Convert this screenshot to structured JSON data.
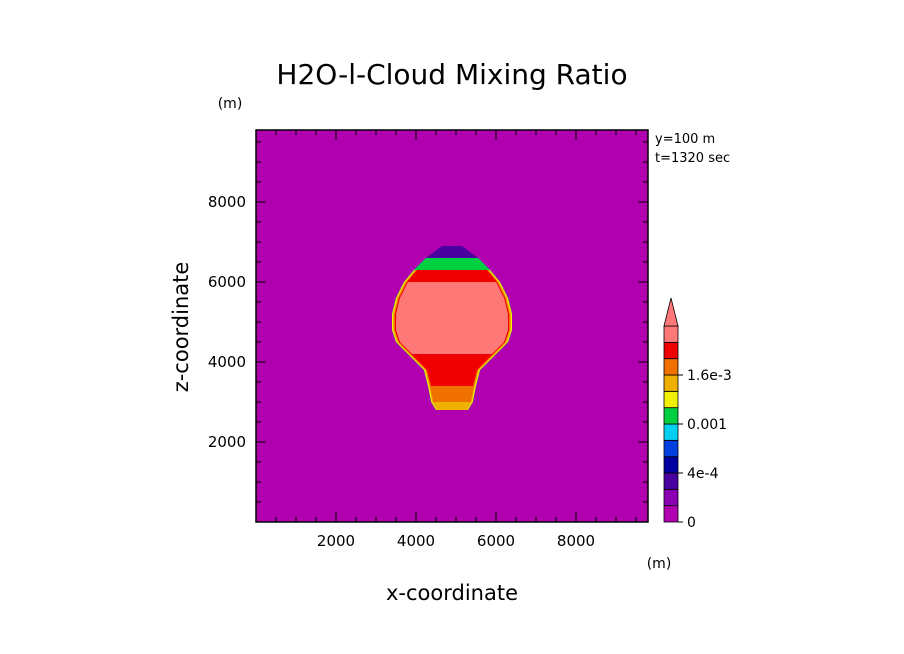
{
  "chart_data": {
    "type": "heatmap",
    "title": "H2O-l-Cloud Mixing Ratio",
    "xlabel": "x-coordinate",
    "ylabel": "z-coordinate",
    "x_unit": "(m)",
    "y_unit": "(m)",
    "xlim": [
      0,
      9800
    ],
    "ylim": [
      0,
      9800
    ],
    "xticks": [
      2000,
      4000,
      6000,
      8000
    ],
    "yticks": [
      2000,
      4000,
      6000,
      8000
    ],
    "info": [
      "y=100 m",
      "t=1320 sec"
    ],
    "background_level": 0,
    "colorbar": {
      "colors": [
        "#b000b0",
        "#8c00b4",
        "#4a00a0",
        "#0000a0",
        "#0040e0",
        "#00d0f0",
        "#00d040",
        "#f0f000",
        "#f0b000",
        "#f07000",
        "#f00000",
        "#ff7878"
      ],
      "tick_labels": [
        "0",
        "4e-4",
        "0.001",
        "1.6e-3"
      ],
      "extend": "max"
    },
    "cloud_profile": {
      "z": [
        2800,
        3000,
        3400,
        3800,
        4200,
        4500,
        4800,
        5200,
        5600,
        6000,
        6300,
        6600,
        6900
      ],
      "half_width": [
        400,
        520,
        600,
        700,
        1100,
        1400,
        1500,
        1500,
        1400,
        1200,
        950,
        650,
        250
      ],
      "level_index": [
        8,
        9,
        10,
        10,
        11,
        11,
        11,
        11,
        11,
        11,
        10,
        6,
        2
      ]
    }
  }
}
